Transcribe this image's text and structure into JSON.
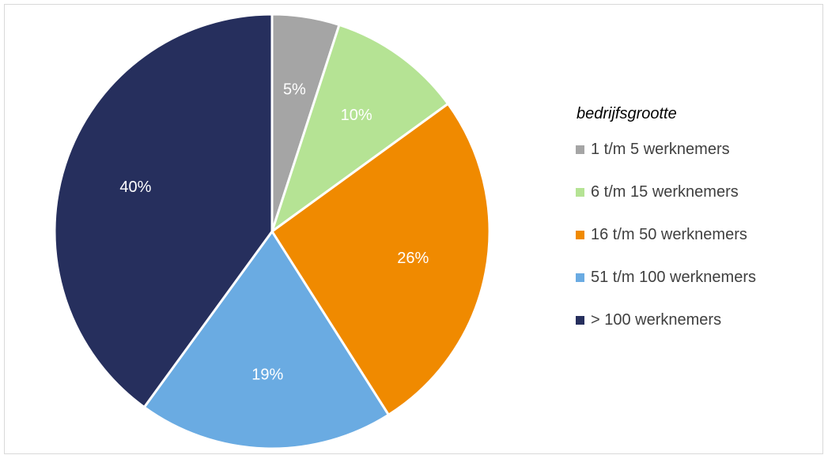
{
  "chart_data": {
    "type": "pie",
    "title": "",
    "legend_title": "bedrijfsgrootte",
    "legend_position": "right",
    "categories": [
      "1 t/m 5 werknemers",
      "6 t/m 15 werknemers",
      "16 t/m 50 werknemers",
      "51 t/m 100 werknemers",
      "> 100 werknemers"
    ],
    "values": [
      5,
      10,
      26,
      19,
      40
    ],
    "labels": [
      "5%",
      "10%",
      "26%",
      "19%",
      "40%"
    ],
    "colors": [
      "#a5a5a5",
      "#b5e394",
      "#f08a00",
      "#6aabe2",
      "#262f5d"
    ]
  }
}
